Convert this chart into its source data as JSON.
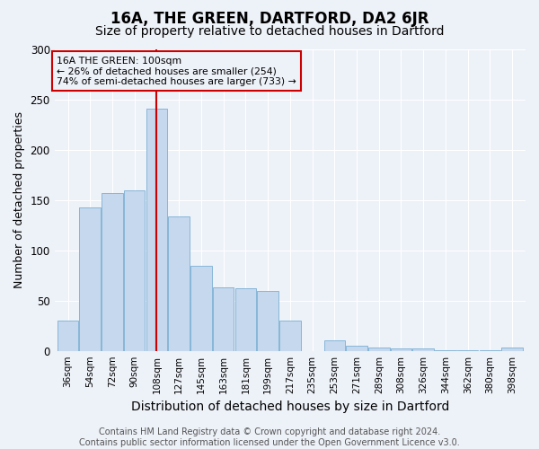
{
  "title": "16A, THE GREEN, DARTFORD, DA2 6JR",
  "subtitle": "Size of property relative to detached houses in Dartford",
  "xlabel": "Distribution of detached houses by size in Dartford",
  "ylabel": "Number of detached properties",
  "categories": [
    "36sqm",
    "54sqm",
    "72sqm",
    "90sqm",
    "108sqm",
    "127sqm",
    "145sqm",
    "163sqm",
    "181sqm",
    "199sqm",
    "217sqm",
    "235sqm",
    "253sqm",
    "271sqm",
    "289sqm",
    "308sqm",
    "326sqm",
    "344sqm",
    "362sqm",
    "380sqm",
    "398sqm"
  ],
  "values": [
    30,
    143,
    157,
    160,
    241,
    134,
    85,
    63,
    62,
    60,
    30,
    0,
    10,
    5,
    3,
    2,
    2,
    1,
    1,
    1,
    3
  ],
  "bar_color": "#c5d8ed",
  "bar_edge_color": "#7aafd4",
  "vline_x": 4.0,
  "vline_color": "#cc0000",
  "annotation_text": "16A THE GREEN: 100sqm\n← 26% of detached houses are smaller (254)\n74% of semi-detached houses are larger (733) →",
  "annotation_box_edge": "#cc0000",
  "ylim": [
    0,
    300
  ],
  "yticks": [
    0,
    50,
    100,
    150,
    200,
    250,
    300
  ],
  "bg_color": "#edf1f8",
  "grid_color": "#ffffff",
  "footer": "Contains HM Land Registry data © Crown copyright and database right 2024.\nContains public sector information licensed under the Open Government Licence v3.0.",
  "title_fontsize": 12,
  "subtitle_fontsize": 10,
  "xlabel_fontsize": 10,
  "ylabel_fontsize": 9,
  "tick_fontsize": 7.5,
  "footer_fontsize": 7
}
